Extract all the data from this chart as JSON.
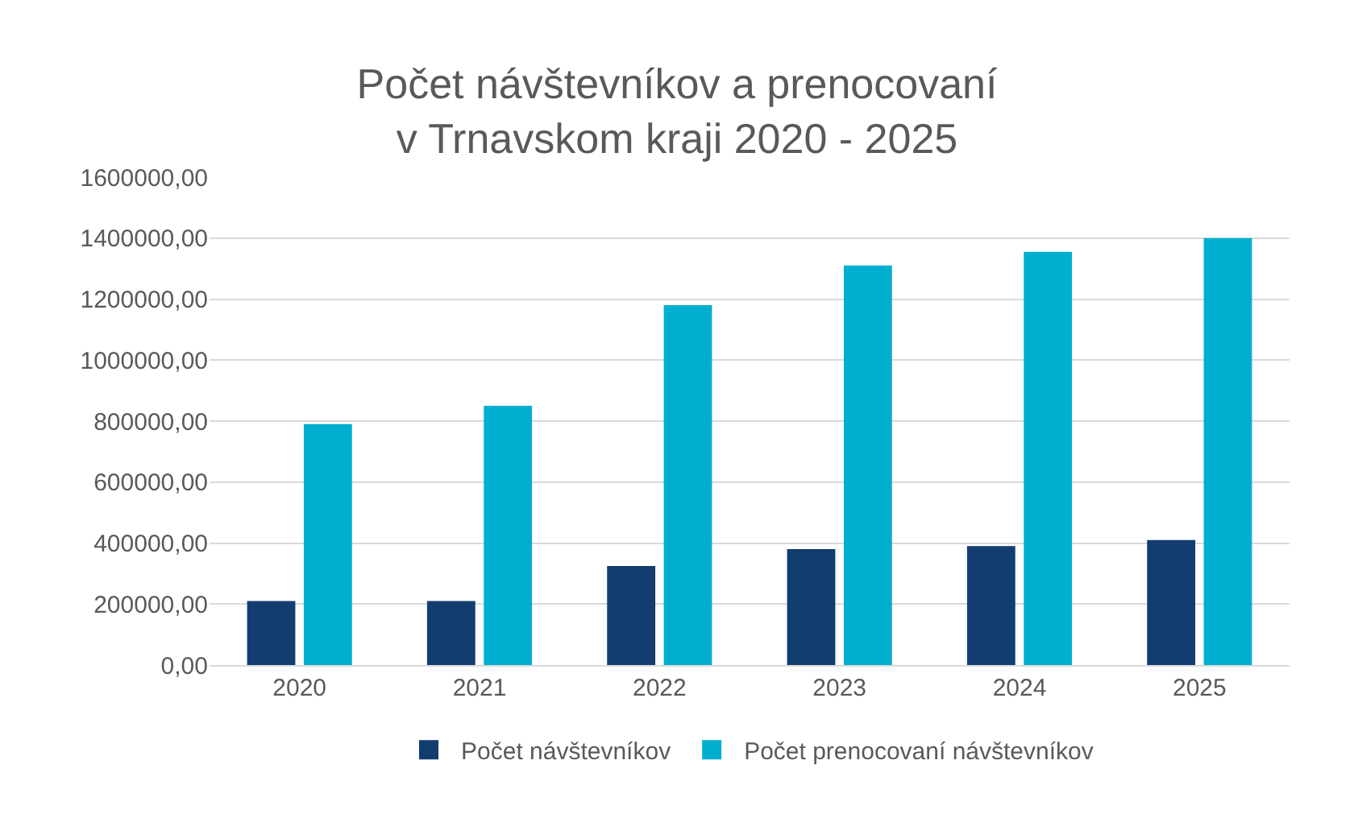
{
  "chart_data": {
    "type": "bar",
    "title": "Počet návštevníkov a prenocovaní\nv Trnavskom kraji 2020 - 2025",
    "categories": [
      "2020",
      "2021",
      "2022",
      "2023",
      "2024",
      "2025"
    ],
    "series": [
      {
        "name": "Počet návštevníkov",
        "color": "#123d6e",
        "values": [
          210000,
          210000,
          325000,
          380000,
          390000,
          410000
        ]
      },
      {
        "name": "Počet prenocovaní návštevníkov",
        "color": "#00afcf",
        "values": [
          790000,
          850000,
          1180000,
          1310000,
          1355000,
          1400000
        ]
      }
    ],
    "ylim": [
      0,
      1600000
    ],
    "yticks": [
      {
        "value": 0,
        "label": "0,00"
      },
      {
        "value": 200000,
        "label": "200000,00"
      },
      {
        "value": 400000,
        "label": "400000,00"
      },
      {
        "value": 600000,
        "label": "600000,00"
      },
      {
        "value": 800000,
        "label": "800000,00"
      },
      {
        "value": 1000000,
        "label": "1000000,00"
      },
      {
        "value": 1200000,
        "label": "1200000,00"
      },
      {
        "value": 1400000,
        "label": "1400000,00"
      },
      {
        "value": 1600000,
        "label": "1600000,00"
      }
    ],
    "grid": "y",
    "legend": "bottom"
  }
}
